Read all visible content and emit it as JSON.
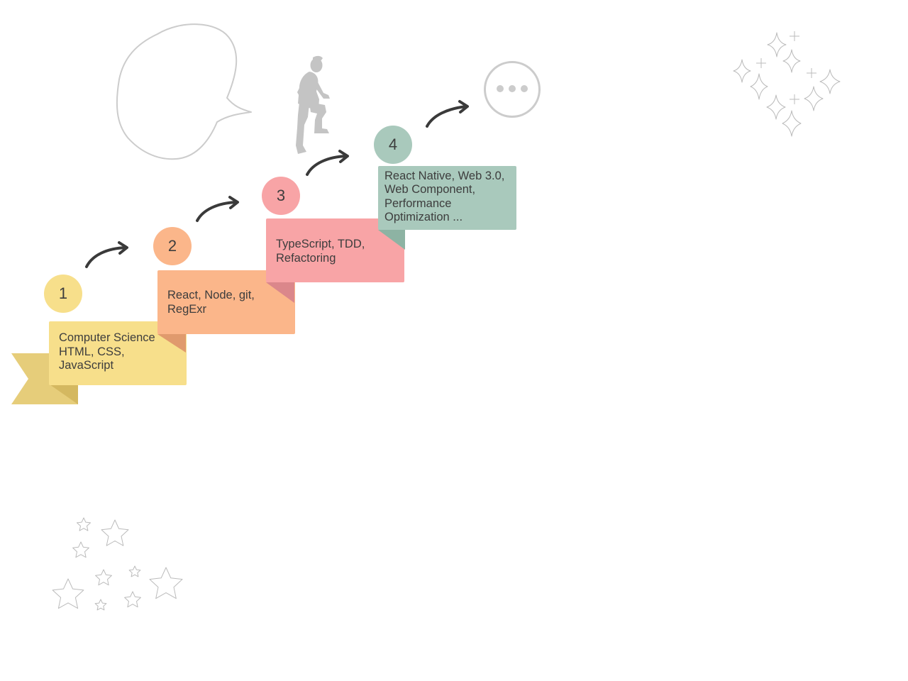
{
  "steps": [
    {
      "number": "1",
      "lines": [
        "Computer Science",
        "HTML, CSS,",
        "JavaScript"
      ],
      "color": "#f7df8b",
      "fold_color": "#e6c36f"
    },
    {
      "number": "2",
      "lines": [
        "React, Node, git,",
        "RegExr"
      ],
      "color": "#fbb68a",
      "fold_color": "#e09a6d"
    },
    {
      "number": "3",
      "lines": [
        "TypeScript, TDD,",
        "Refactoring"
      ],
      "color": "#f8a4a6",
      "fold_color": "#db878b"
    },
    {
      "number": "4",
      "lines": [
        "React Native, Web 3.0,",
        "Web Component,",
        "Performance",
        "Optimization ..."
      ],
      "color": "#a9c9bc",
      "fold_color": "#8db3a3"
    }
  ],
  "colors": {
    "ribbon_tail": "#e6cd7a",
    "arrow": "#3a3a3a",
    "outline": "#cccccc",
    "figure": "#c4c4c4",
    "stars": "#bbbbbb"
  },
  "icons": [
    "speech-bubble-icon",
    "climbing-person-icon",
    "ellipsis-circle-icon",
    "sparkles-icon",
    "stars-icon",
    "arrow-icon"
  ]
}
